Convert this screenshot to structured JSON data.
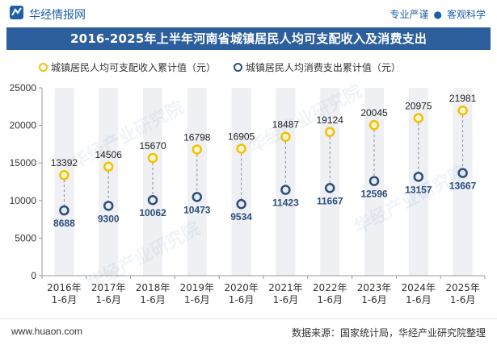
{
  "header": {
    "brand": "华经情报网",
    "tagline_left": "专业严谨",
    "tagline_sep": "●",
    "tagline_right": "客观科学"
  },
  "watermark": "华经产业研究院",
  "footer": {
    "site": "www.huaon.com",
    "source": "数据来源：国家统计局，华经产业研究院整理"
  },
  "colors": {
    "title_bg": "#2c5f9c",
    "series1": "#f2c100",
    "series2": "#2c4f7a",
    "band": "#eef0f4"
  },
  "chart_data": {
    "type": "scatter",
    "title": "2016-2025年上半年河南省城镇居民人均可支配收入及消费支出",
    "categories": [
      "2016年\n1-6月",
      "2017年\n1-6月",
      "2018年\n1-6月",
      "2019年\n1-6月",
      "2020年\n1-6月",
      "2021年\n1-6月",
      "2022年\n1-6月",
      "2023年\n1-6月",
      "2024年\n1-6月",
      "2025年\n1-6月"
    ],
    "series": [
      {
        "name": "城镇居民人均可支配收入累计值（元）",
        "values": [
          13392,
          14506,
          15670,
          16798,
          16905,
          18487,
          19124,
          20045,
          20975,
          21981
        ]
      },
      {
        "name": "城镇居民人均消费支出累计值（元）",
        "values": [
          8688,
          9300,
          10062,
          10473,
          9534,
          11423,
          11667,
          12596,
          13157,
          13667
        ]
      }
    ],
    "ylim": [
      0,
      25000
    ],
    "yticks": [
      0,
      5000,
      10000,
      15000,
      20000,
      25000
    ],
    "xlabel": "",
    "ylabel": "",
    "grid": false,
    "legend": "top-left",
    "connector": "dashed vertical line between paired points"
  }
}
